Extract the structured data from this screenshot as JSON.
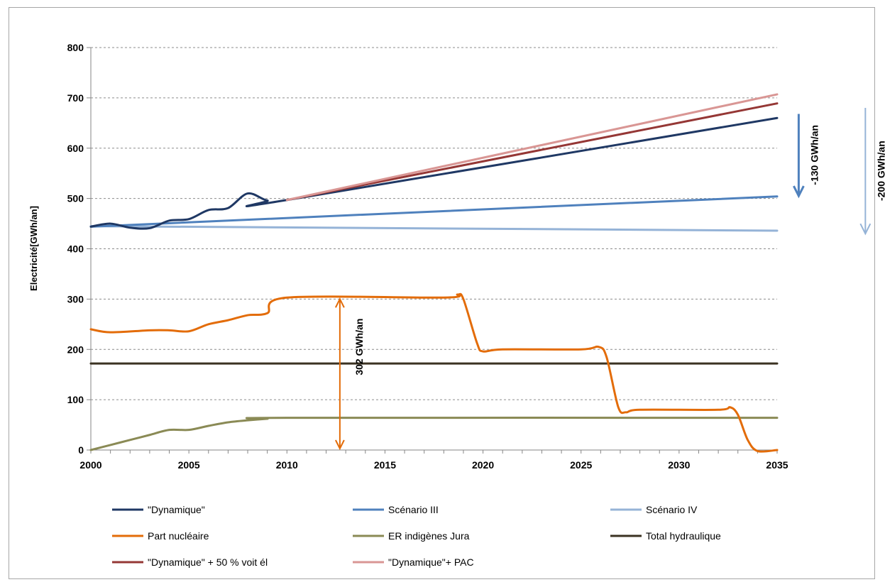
{
  "chart_data": {
    "type": "line",
    "title": "",
    "xlabel": "",
    "ylabel": "Electricité[GWh/an]",
    "xlim": [
      2000,
      2035
    ],
    "ylim": [
      0,
      800
    ],
    "x_ticks": [
      2000,
      2005,
      2010,
      2015,
      2020,
      2025,
      2030,
      2035
    ],
    "y_ticks": [
      0,
      100,
      200,
      300,
      400,
      500,
      600,
      700,
      800
    ],
    "grid": "horizontal dashed",
    "legend_placement": "bottom",
    "series": [
      {
        "name": "\"Dynamique\"",
        "color": "#1f3864",
        "points": [
          [
            2000,
            444
          ],
          [
            2001,
            450
          ],
          [
            2002,
            442
          ],
          [
            2003,
            441
          ],
          [
            2004,
            456
          ],
          [
            2005,
            459
          ],
          [
            2006,
            477
          ],
          [
            2007,
            481
          ],
          [
            2008,
            510
          ],
          [
            2009,
            496
          ],
          [
            2010,
            497
          ],
          [
            2035,
            660
          ]
        ]
      },
      {
        "name": "Scénario III",
        "color": "#4f81bd",
        "points": [
          [
            2000,
            444
          ],
          [
            2035,
            504
          ]
        ]
      },
      {
        "name": "Scénario IV",
        "color": "#95b3d7",
        "points": [
          [
            2000,
            445
          ],
          [
            2035,
            436
          ]
        ]
      },
      {
        "name": "Part nucléaire",
        "color": "#e36c09",
        "points": [
          [
            2000,
            240
          ],
          [
            2001,
            234
          ],
          [
            2003,
            238
          ],
          [
            2004,
            238
          ],
          [
            2005,
            236
          ],
          [
            2006,
            250
          ],
          [
            2007,
            258
          ],
          [
            2008,
            268
          ],
          [
            2009,
            272
          ],
          [
            2010,
            303
          ],
          [
            2018,
            303
          ],
          [
            2018.7,
            309
          ],
          [
            2019,
            300
          ],
          [
            2019.7,
            212
          ],
          [
            2020,
            196
          ],
          [
            2021,
            200
          ],
          [
            2025,
            200
          ],
          [
            2025.9,
            205
          ],
          [
            2026.3,
            185
          ],
          [
            2026.9,
            85
          ],
          [
            2027.3,
            75
          ],
          [
            2028,
            80
          ],
          [
            2032,
            80
          ],
          [
            2032.6,
            85
          ],
          [
            2033,
            70
          ],
          [
            2033.5,
            20
          ],
          [
            2034,
            -2
          ],
          [
            2035,
            0
          ]
        ]
      },
      {
        "name": "ER indigènes Jura",
        "color": "#8a8a55",
        "points": [
          [
            2000,
            0
          ],
          [
            2001,
            10
          ],
          [
            2002,
            20
          ],
          [
            2003,
            30
          ],
          [
            2004,
            40
          ],
          [
            2005,
            40
          ],
          [
            2006,
            48
          ],
          [
            2007,
            55
          ],
          [
            2008,
            59
          ],
          [
            2009,
            62
          ],
          [
            2010,
            64
          ],
          [
            2035,
            64
          ]
        ]
      },
      {
        "name": "Total hydraulique",
        "color": "#3b3222",
        "points": [
          [
            2000,
            172
          ],
          [
            2035,
            172
          ]
        ]
      },
      {
        "name": "\"Dynamique\" + 50 % voit él",
        "color": "#953735",
        "points": [
          [
            2010,
            497
          ],
          [
            2035,
            689
          ]
        ]
      },
      {
        "name": "\"Dynamique\"+ PAC",
        "color": "#d99694",
        "points": [
          [
            2010,
            497
          ],
          [
            2035,
            707
          ]
        ]
      }
    ],
    "annotations": [
      {
        "text": "302 GWh/an",
        "color": "#e36c09",
        "x": 2012.7,
        "y_from": 303,
        "y_to": 0
      },
      {
        "text": "-130 GWh/an",
        "color": "#4f81bd",
        "x": 2036.1,
        "y_from": 668,
        "y_to": 505
      },
      {
        "text": "-200 GWh/an",
        "color": "#95b3d7",
        "x": 2039.5,
        "y_from": 680,
        "y_to": 430
      }
    ]
  },
  "legend": {
    "items": [
      {
        "label": "\"Dynamique\"",
        "color": "#1f3864"
      },
      {
        "label": "Scénario III",
        "color": "#4f81bd"
      },
      {
        "label": "Scénario IV",
        "color": "#95b3d7"
      },
      {
        "label": "Part nucléaire",
        "color": "#e36c09"
      },
      {
        "label": "ER indigènes Jura",
        "color": "#8a8a55"
      },
      {
        "label": "Total hydraulique",
        "color": "#3b3222"
      },
      {
        "label": "\"Dynamique\" + 50 % voit él",
        "color": "#953735"
      },
      {
        "label": "\"Dynamique\"+ PAC",
        "color": "#d99694"
      }
    ]
  }
}
